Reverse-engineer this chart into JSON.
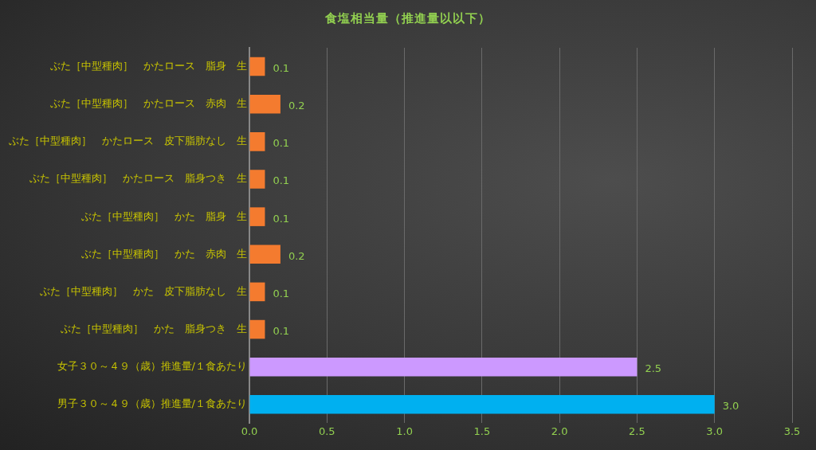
{
  "chart_data": {
    "type": "bar",
    "orientation": "horizontal",
    "title": "食塩相当量（推進量以以下）",
    "categories": [
      "ぶた［中型種肉］　かたロース　脂身　生",
      "ぶた［中型種肉］　かたロース　赤肉　生",
      "ぶた［中型種肉］　かたロース　皮下脂肪なし　生",
      "ぶた［中型種肉］　かたロース　脂身つき　生",
      "ぶた［中型種肉］　かた　脂身　生",
      "ぶた［中型種肉］　かた　赤肉　生",
      "ぶた［中型種肉］　かた　皮下脂肪なし　生",
      "ぶた［中型種肉］　かた　脂身つき　生",
      "女子３０～４９（歳）推進量/１食あたり",
      "男子３０～４９（歳）推進量/１食あたり"
    ],
    "values": [
      0.1,
      0.2,
      0.1,
      0.1,
      0.1,
      0.2,
      0.1,
      0.1,
      2.5,
      3.0
    ],
    "colors": [
      "#f47b2f",
      "#f47b2f",
      "#f47b2f",
      "#f47b2f",
      "#f47b2f",
      "#f47b2f",
      "#f47b2f",
      "#f47b2f",
      "#cc99ff",
      "#00b0f0"
    ],
    "value_labels": [
      "0.1",
      "0.2",
      "0.1",
      "0.1",
      "0.1",
      "0.2",
      "0.1",
      "0.1",
      "2.5",
      "3.0"
    ],
    "xlim": [
      0,
      3.5
    ],
    "xticks": [
      {
        "value": 0,
        "label": "0.0"
      },
      {
        "value": 0.5,
        "label": "0.5"
      },
      {
        "value": 1,
        "label": "1.0"
      },
      {
        "value": 1.5,
        "label": "1.5"
      },
      {
        "value": 2,
        "label": "2.0"
      },
      {
        "value": 2.5,
        "label": "2.5"
      },
      {
        "value": 3,
        "label": "3.0"
      },
      {
        "value": 3.5,
        "label": "3.5"
      }
    ],
    "grid": "x",
    "legend": false
  }
}
